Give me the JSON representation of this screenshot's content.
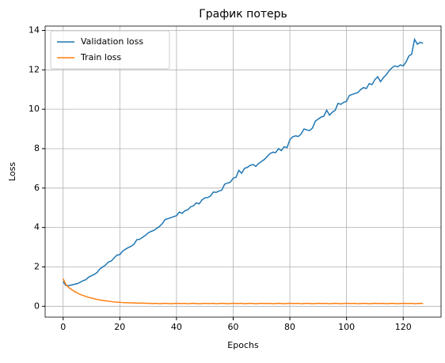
{
  "chart_data": {
    "type": "line",
    "title": "График потерь",
    "x_label": "Epochs",
    "y_label": "Loss",
    "x": [
      0,
      1,
      2,
      3,
      4,
      5,
      6,
      7,
      8,
      9,
      10,
      11,
      12,
      13,
      14,
      15,
      16,
      17,
      18,
      19,
      20,
      21,
      22,
      23,
      24,
      25,
      26,
      27,
      28,
      29,
      30,
      31,
      32,
      33,
      34,
      35,
      36,
      37,
      38,
      39,
      40,
      41,
      42,
      43,
      44,
      45,
      46,
      47,
      48,
      49,
      50,
      51,
      52,
      53,
      54,
      55,
      56,
      57,
      58,
      59,
      60,
      61,
      62,
      63,
      64,
      65,
      66,
      67,
      68,
      69,
      70,
      71,
      72,
      73,
      74,
      75,
      76,
      77,
      78,
      79,
      80,
      81,
      82,
      83,
      84,
      85,
      86,
      87,
      88,
      89,
      90,
      91,
      92,
      93,
      94,
      95,
      96,
      97,
      98,
      99,
      100,
      101,
      102,
      103,
      104,
      105,
      106,
      107,
      108,
      109,
      110,
      111,
      112,
      113,
      114,
      115,
      116,
      117,
      118,
      119,
      120,
      121,
      122,
      123,
      124,
      125,
      126,
      127
    ],
    "series": [
      {
        "name": "Validation loss",
        "color": "#1f77b4",
        "values": [
          1.25,
          1.05,
          1.05,
          1.08,
          1.12,
          1.15,
          1.22,
          1.3,
          1.35,
          1.48,
          1.55,
          1.62,
          1.72,
          1.9,
          2.0,
          2.1,
          2.25,
          2.3,
          2.45,
          2.6,
          2.62,
          2.8,
          2.9,
          2.98,
          3.05,
          3.15,
          3.38,
          3.4,
          3.5,
          3.6,
          3.72,
          3.8,
          3.85,
          3.95,
          4.05,
          4.2,
          4.4,
          4.45,
          4.5,
          4.55,
          4.6,
          4.78,
          4.72,
          4.85,
          4.9,
          5.05,
          5.1,
          5.25,
          5.2,
          5.4,
          5.5,
          5.52,
          5.6,
          5.8,
          5.78,
          5.85,
          5.9,
          6.2,
          6.25,
          6.3,
          6.5,
          6.55,
          6.9,
          6.75,
          7.0,
          7.05,
          7.15,
          7.2,
          7.1,
          7.25,
          7.35,
          7.45,
          7.6,
          7.75,
          7.82,
          7.8,
          8.0,
          7.9,
          8.1,
          8.05,
          8.45,
          8.6,
          8.65,
          8.62,
          8.75,
          9.0,
          8.95,
          8.92,
          9.05,
          9.4,
          9.5,
          9.6,
          9.65,
          9.95,
          9.7,
          9.85,
          9.95,
          10.3,
          10.25,
          10.35,
          10.4,
          10.7,
          10.75,
          10.8,
          10.85,
          11.0,
          11.1,
          11.05,
          11.3,
          11.25,
          11.5,
          11.65,
          11.4,
          11.6,
          11.75,
          11.95,
          12.1,
          12.2,
          12.15,
          12.25,
          12.2,
          12.4,
          12.7,
          12.8,
          13.55,
          13.3,
          13.4,
          13.35
        ]
      },
      {
        "name": "Train loss",
        "color": "#ff7f0e",
        "values": [
          1.4,
          1.1,
          0.95,
          0.85,
          0.75,
          0.68,
          0.6,
          0.55,
          0.5,
          0.45,
          0.42,
          0.38,
          0.35,
          0.32,
          0.3,
          0.28,
          0.26,
          0.24,
          0.22,
          0.21,
          0.2,
          0.19,
          0.18,
          0.18,
          0.17,
          0.17,
          0.16,
          0.16,
          0.16,
          0.15,
          0.15,
          0.14,
          0.14,
          0.15,
          0.13,
          0.14,
          0.15,
          0.14,
          0.13,
          0.14,
          0.15,
          0.14,
          0.14,
          0.15,
          0.13,
          0.14,
          0.15,
          0.14,
          0.13,
          0.14,
          0.15,
          0.14,
          0.14,
          0.15,
          0.13,
          0.14,
          0.15,
          0.14,
          0.13,
          0.14,
          0.15,
          0.14,
          0.14,
          0.15,
          0.13,
          0.14,
          0.15,
          0.14,
          0.13,
          0.14,
          0.15,
          0.14,
          0.14,
          0.15,
          0.13,
          0.14,
          0.15,
          0.14,
          0.13,
          0.14,
          0.15,
          0.14,
          0.14,
          0.15,
          0.13,
          0.14,
          0.15,
          0.14,
          0.13,
          0.14,
          0.15,
          0.14,
          0.14,
          0.15,
          0.13,
          0.14,
          0.15,
          0.14,
          0.13,
          0.14,
          0.15,
          0.14,
          0.14,
          0.15,
          0.13,
          0.14,
          0.15,
          0.14,
          0.13,
          0.14,
          0.15,
          0.14,
          0.14,
          0.15,
          0.13,
          0.14,
          0.15,
          0.14,
          0.13,
          0.14,
          0.15,
          0.14,
          0.14,
          0.15,
          0.13,
          0.14,
          0.15,
          0.14
        ]
      }
    ],
    "xlim": [
      -6.35,
      133.35
    ],
    "ylim": [
      -0.55,
      14.22
    ],
    "xticks": [
      0,
      20,
      40,
      60,
      80,
      100,
      120
    ],
    "yticks": [
      0,
      2,
      4,
      6,
      8,
      10,
      12,
      14
    ],
    "grid": true,
    "legend": "upper-left"
  }
}
